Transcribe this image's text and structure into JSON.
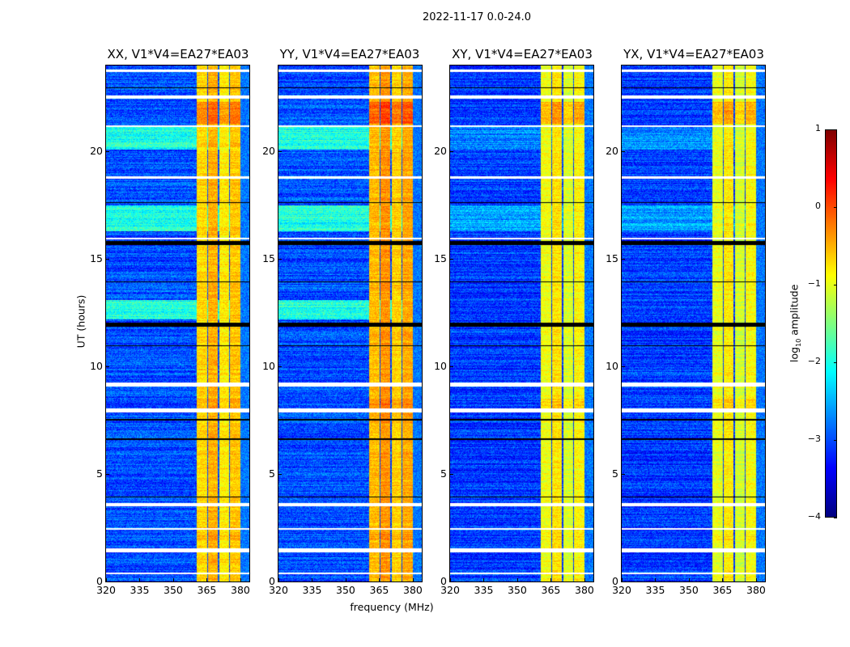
{
  "chart_data": {
    "type": "heatmap",
    "title": "2022-11-17 0.0-24.0",
    "xlabel": "frequency (MHz)",
    "ylabel": "UT (hours)",
    "xlim": [
      320,
      384
    ],
    "ylim": [
      0,
      24
    ],
    "xticks": [
      "320",
      "335",
      "350",
      "365",
      "380"
    ],
    "xtick_values": [
      320,
      335,
      350,
      365,
      380
    ],
    "yticks": [
      "0",
      "5",
      "10",
      "15",
      "20"
    ],
    "ytick_values": [
      0,
      5,
      10,
      15,
      20
    ],
    "colorbar": {
      "label_main": "log",
      "label_sub": "10",
      "label_rest": " amplitude",
      "colormap": "jet",
      "range": [
        -4,
        1
      ],
      "ticks": [
        "1",
        "0",
        "−1",
        "−2",
        "−3",
        "−4"
      ],
      "tick_values": [
        1,
        0,
        -1,
        -2,
        -3,
        -4
      ]
    },
    "panels": [
      {
        "title": "XX, V1*V4=EA27*EA03",
        "background_level": -3.0,
        "bright_time_bands": [
          [
            20.1,
            21.2,
            -2.0
          ],
          [
            16.3,
            17.5,
            -2.0
          ],
          [
            12.2,
            13.1,
            -2.0
          ]
        ],
        "band_offset": 0.0
      },
      {
        "title": "YY, V1*V4=EA27*EA03",
        "background_level": -3.0,
        "bright_time_bands": [
          [
            20.1,
            21.2,
            -2.0
          ],
          [
            16.3,
            17.5,
            -2.0
          ],
          [
            12.2,
            13.1,
            -2.0
          ]
        ],
        "band_offset": 0.15
      },
      {
        "title": "XY, V1*V4=EA27*EA03",
        "background_level": -3.1,
        "bright_time_bands": [
          [
            20.1,
            21.2,
            -2.7
          ],
          [
            16.3,
            17.5,
            -2.6
          ]
        ],
        "band_offset": -0.25
      },
      {
        "title": "YX, V1*V4=EA27*EA03",
        "background_level": -3.1,
        "bright_time_bands": [
          [
            20.1,
            21.2,
            -2.7
          ],
          [
            16.3,
            17.5,
            -2.6
          ]
        ],
        "band_offset": -0.3
      }
    ],
    "rfi_channels": [
      {
        "freq_range": [
          360.5,
          365.2
        ],
        "level": -0.7
      },
      {
        "freq_range": [
          365.7,
          370.0
        ],
        "level": -0.5
      },
      {
        "freq_range": [
          370.5,
          375.0
        ],
        "level": -0.8
      },
      {
        "freq_range": [
          375.5,
          380.0
        ],
        "level": -0.6
      }
    ],
    "hot_times": [
      [
        21.3,
        22.3,
        0.4
      ],
      [
        7.9,
        8.5,
        0.2
      ],
      [
        1.9,
        2.3,
        0.1
      ]
    ],
    "flagged_times_white": [
      [
        23.7,
        23.8
      ],
      [
        22.45,
        22.6
      ],
      [
        21.15,
        21.2
      ],
      [
        18.75,
        18.85
      ],
      [
        15.9,
        16.0
      ],
      [
        9.05,
        9.25
      ],
      [
        7.85,
        8.05
      ],
      [
        3.5,
        3.65
      ],
      [
        2.4,
        2.48
      ],
      [
        1.35,
        1.55
      ],
      [
        0.35,
        0.42
      ]
    ],
    "flagged_times_black": [
      [
        11.85,
        12.05
      ],
      [
        15.65,
        15.85
      ],
      [
        22.95,
        23.0
      ],
      [
        17.6,
        17.65
      ],
      [
        13.9,
        13.95
      ],
      [
        10.95,
        11.0
      ],
      [
        7.5,
        7.55
      ],
      [
        6.6,
        6.65
      ],
      [
        3.9,
        3.95
      ]
    ]
  }
}
